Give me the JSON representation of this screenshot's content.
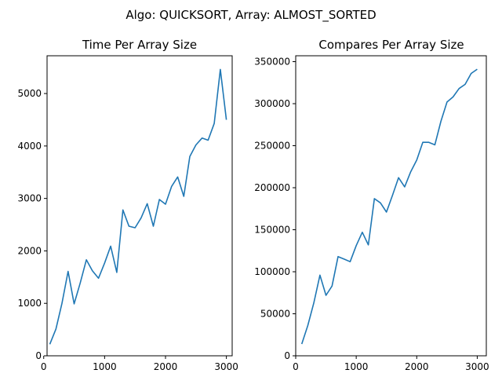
{
  "figure": {
    "suptitle": "Algo: QUICKSORT, Array: ALMOST_SORTED"
  },
  "chart_data": [
    {
      "type": "line",
      "title": "Time Per Array Size",
      "xlabel": "",
      "ylabel": "",
      "xlim": [
        55,
        3095
      ],
      "ylim": [
        0,
        5720
      ],
      "xticks": [
        0,
        1000,
        2000,
        3000
      ],
      "yticks": [
        0,
        1000,
        2000,
        3000,
        4000,
        5000
      ],
      "grid": false,
      "line_color": "#1f77b4",
      "series": [
        {
          "x": [
            100,
            200,
            300,
            400,
            500,
            600,
            700,
            800,
            900,
            1000,
            1100,
            1200,
            1300,
            1400,
            1500,
            1600,
            1700,
            1800,
            1900,
            2000,
            2100,
            2200,
            2300,
            2400,
            2500,
            2600,
            2700,
            2800,
            2900,
            3000
          ],
          "values": [
            220,
            510,
            1000,
            1610,
            990,
            1390,
            1830,
            1620,
            1480,
            1770,
            2090,
            1590,
            2780,
            2470,
            2440,
            2630,
            2900,
            2470,
            2980,
            2890,
            3230,
            3410,
            3040,
            3800,
            4020,
            4150,
            4110,
            4430,
            5460,
            4500
          ]
        }
      ]
    },
    {
      "type": "line",
      "title": "Compares Per Array Size",
      "xlabel": "",
      "ylabel": "",
      "xlim": [
        0,
        3150
      ],
      "ylim": [
        0,
        357000
      ],
      "xticks": [
        0,
        1000,
        2000,
        3000
      ],
      "yticks": [
        0,
        50000,
        100000,
        150000,
        200000,
        250000,
        300000,
        350000
      ],
      "grid": false,
      "line_color": "#1f77b4",
      "series": [
        {
          "x": [
            100,
            200,
            300,
            400,
            500,
            600,
            700,
            800,
            900,
            1000,
            1100,
            1200,
            1300,
            1400,
            1500,
            1600,
            1700,
            1800,
            1900,
            2000,
            2100,
            2200,
            2300,
            2400,
            2500,
            2600,
            2700,
            2800,
            2900,
            3000
          ],
          "values": [
            14000,
            36000,
            63000,
            96000,
            72000,
            83000,
            118000,
            115000,
            112000,
            131000,
            147000,
            132000,
            187000,
            182000,
            171000,
            191000,
            212000,
            201000,
            219000,
            233000,
            254000,
            254000,
            251000,
            279000,
            302000,
            308000,
            318000,
            323000,
            336000,
            341000
          ]
        }
      ]
    }
  ]
}
